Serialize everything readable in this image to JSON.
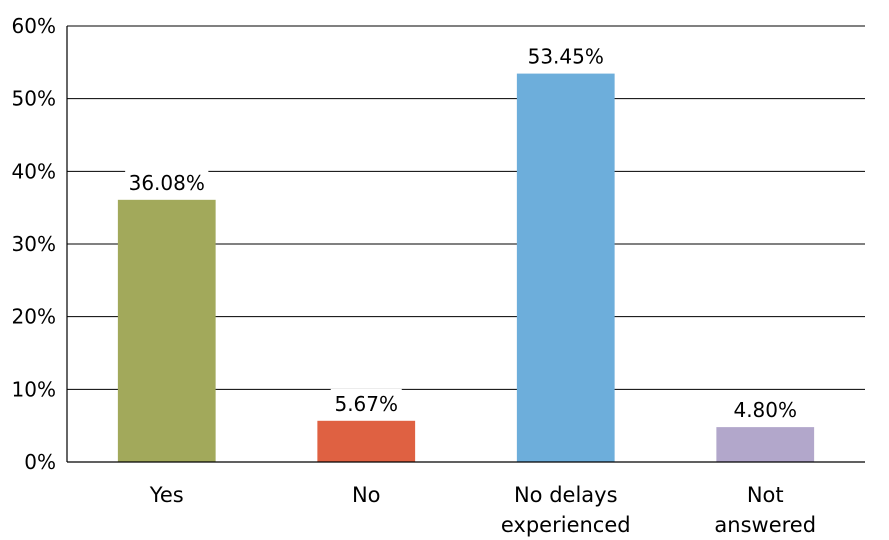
{
  "chart_data": {
    "type": "bar",
    "title": "",
    "xlabel": "",
    "ylabel": "",
    "categories": [
      [
        "Yes"
      ],
      [
        "No"
      ],
      [
        "No delays",
        "experienced"
      ],
      [
        "Not",
        "answered"
      ]
    ],
    "values": [
      36.08,
      5.67,
      53.45,
      4.8
    ],
    "data_labels": [
      "36.08%",
      "5.67%",
      "53.45%",
      "4.80%"
    ],
    "colors": [
      "#a2a95b",
      "#df6142",
      "#6daedb",
      "#b2a7cb"
    ],
    "ylim": [
      0,
      60
    ],
    "yticks": [
      0,
      10,
      20,
      30,
      40,
      50,
      60
    ],
    "ytick_labels": [
      "0%",
      "10%",
      "20%",
      "30%",
      "40%",
      "50%",
      "60%"
    ],
    "grid": true,
    "legend": "none"
  }
}
